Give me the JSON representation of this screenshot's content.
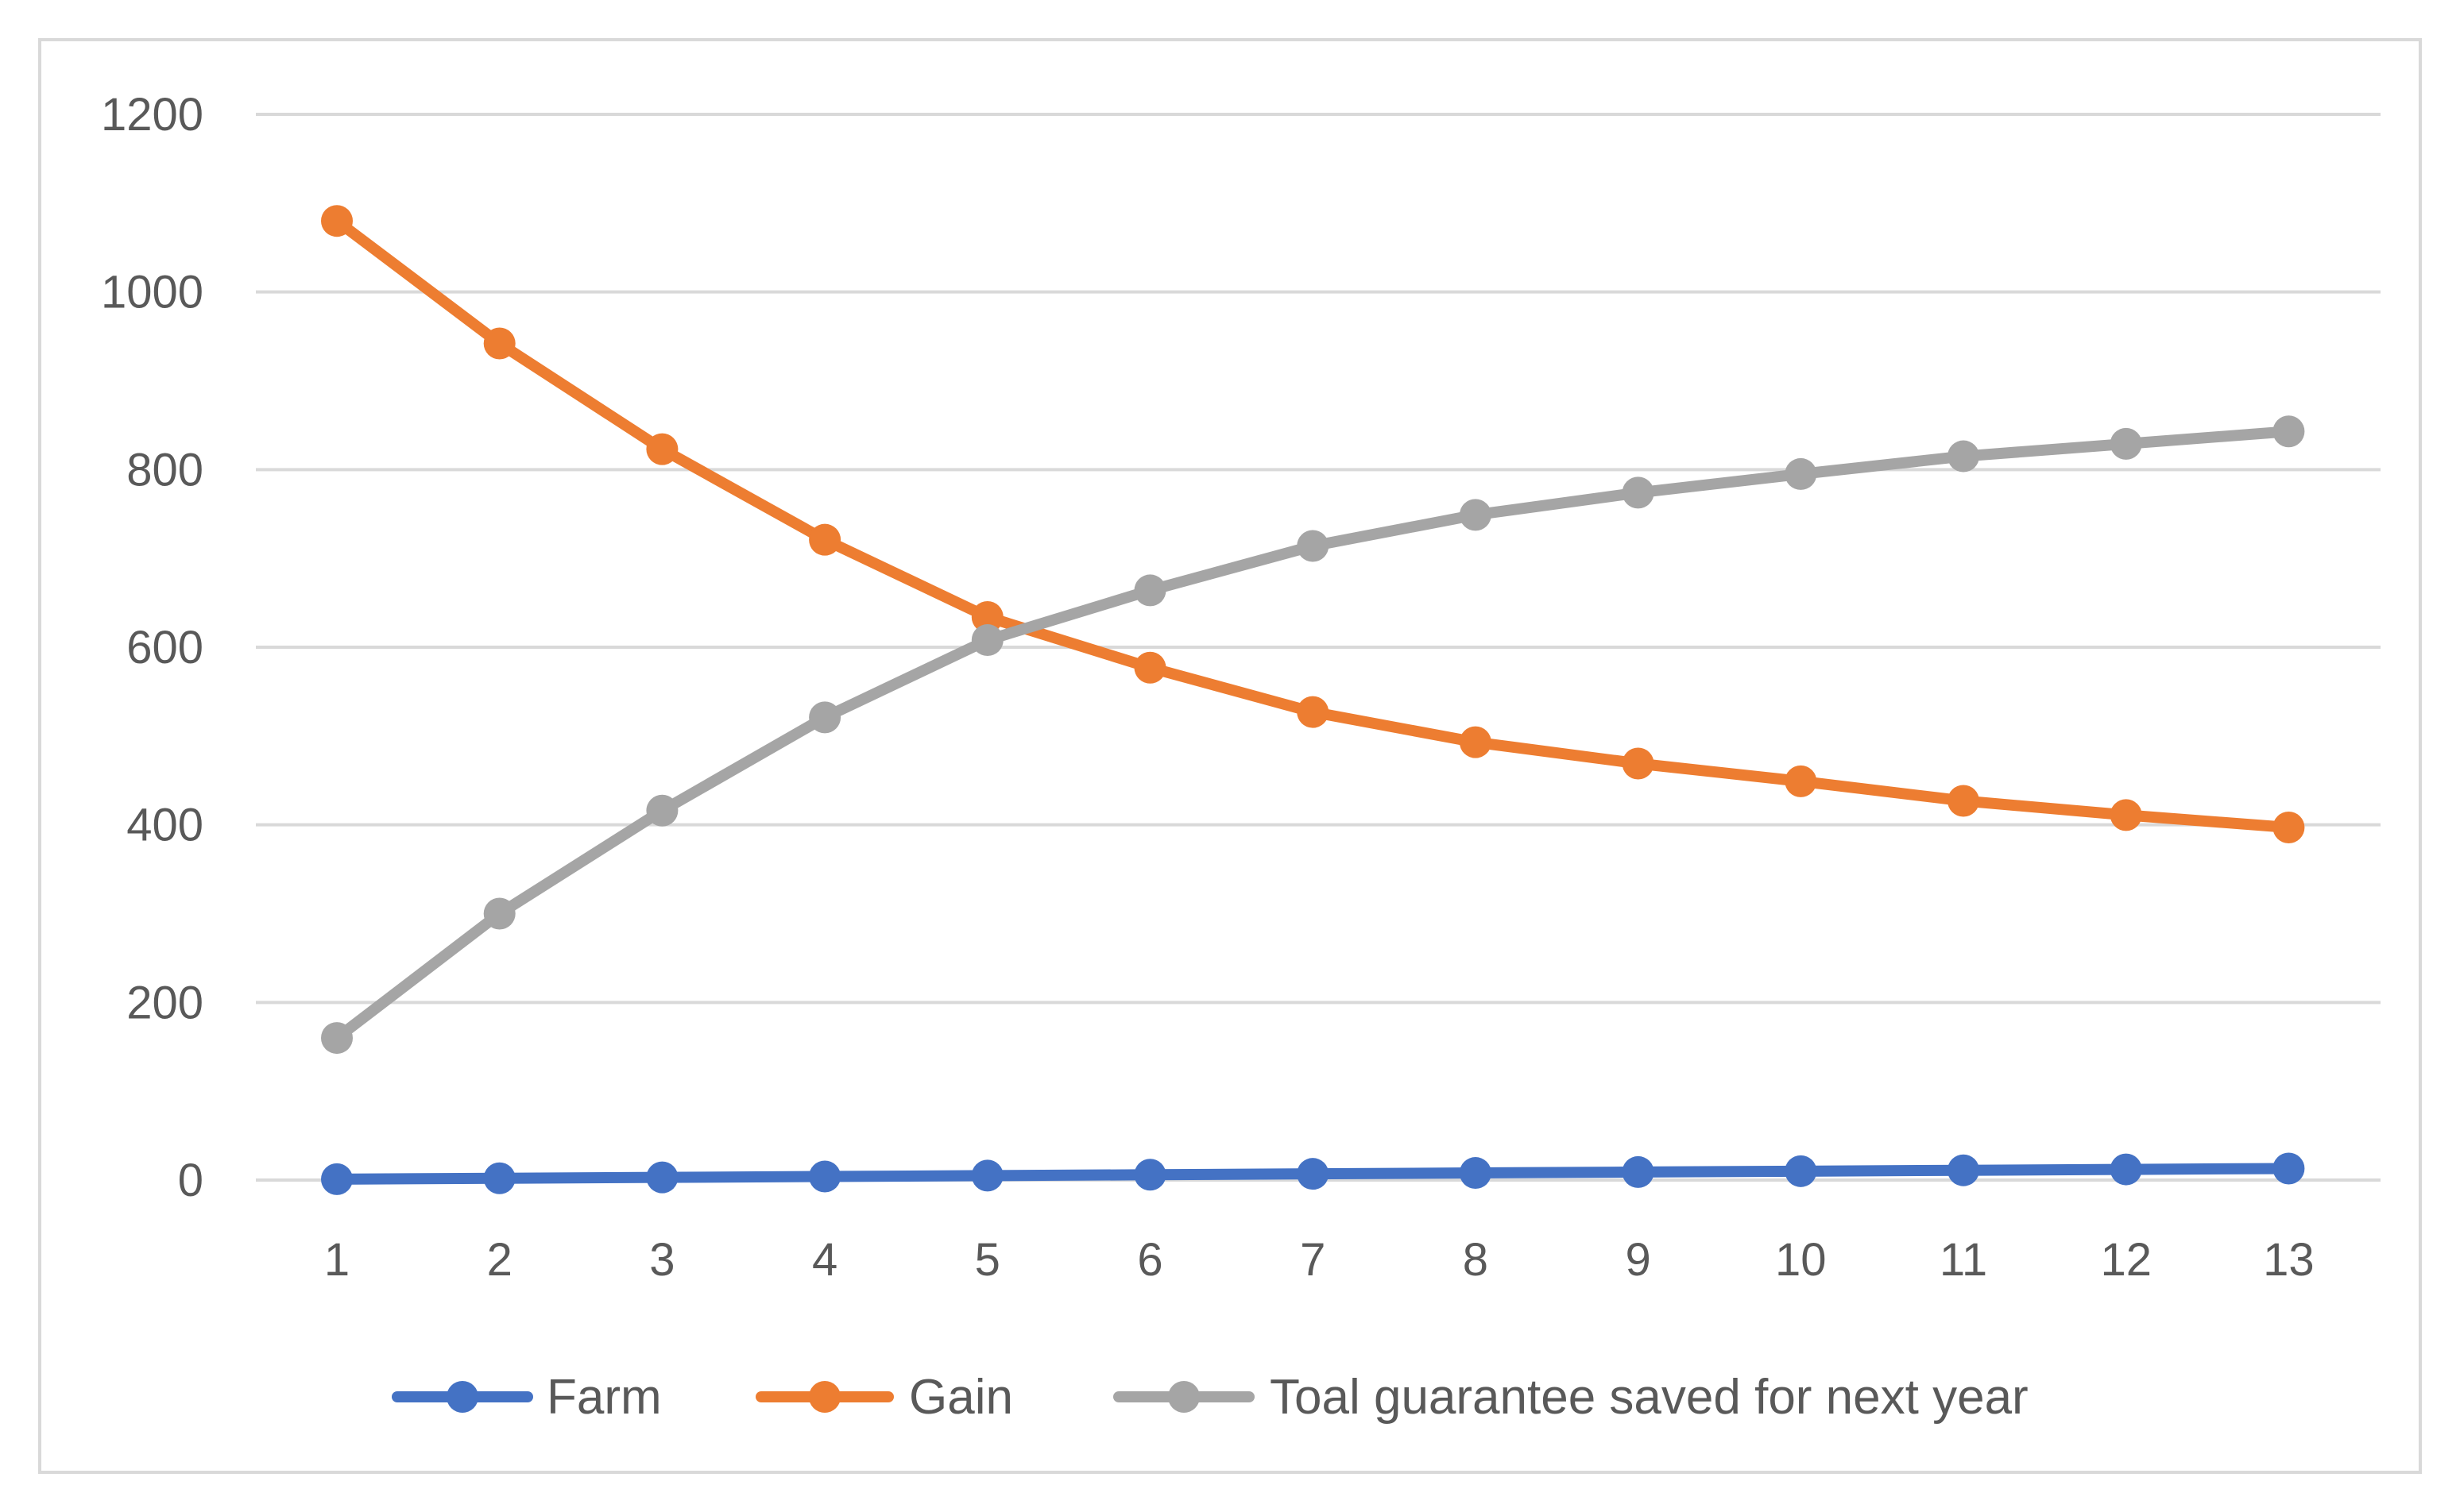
{
  "chart_data": {
    "type": "line",
    "title": "",
    "xlabel": "",
    "ylabel": "",
    "categories": [
      "1",
      "2",
      "3",
      "4",
      "5",
      "6",
      "7",
      "8",
      "9",
      "10",
      "11",
      "12",
      "13"
    ],
    "ylim": [
      0,
      1200
    ],
    "yticks": [
      0,
      200,
      400,
      600,
      800,
      1000,
      1200
    ],
    "grid": true,
    "legend_position": "bottom",
    "series": [
      {
        "name": "Farm",
        "color": "#4472c4",
        "values": [
          1,
          2,
          3,
          4,
          5,
          6,
          7,
          8,
          9,
          10,
          11,
          12,
          13
        ]
      },
      {
        "name": "Gain",
        "color": "#ed7d31",
        "values": [
          1080,
          942,
          823,
          721,
          634,
          577,
          527,
          493,
          469,
          449,
          427,
          411,
          397
        ]
      },
      {
        "name": "Toal guarantee saved for next year",
        "color": "#a5a5a5",
        "values": [
          160,
          300,
          416,
          521,
          608,
          664,
          714,
          749,
          774,
          795,
          815,
          829,
          843
        ]
      }
    ]
  }
}
